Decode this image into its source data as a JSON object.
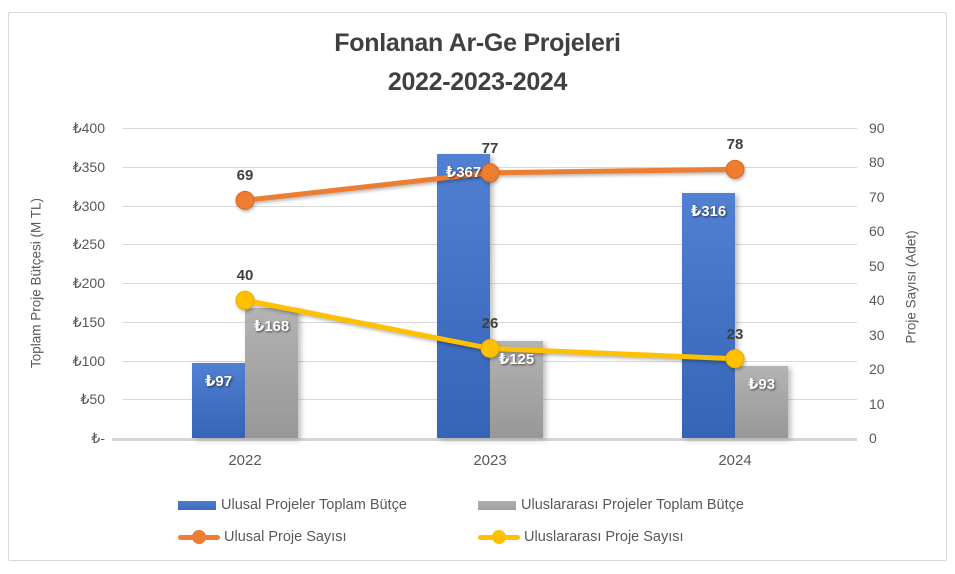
{
  "chart": {
    "title_line1": "Fonlanan Ar-Ge Projeleri",
    "title_line2": "2022-2023-2024"
  },
  "chart_data": {
    "type": "combo-bar-line",
    "title": "Fonlanan Ar-Ge Projeleri 2022-2023-2024",
    "categories": [
      "2022",
      "2023",
      "2024"
    ],
    "series": [
      {
        "name": "Ulusal Projeler Toplam Bütçe",
        "type": "bar",
        "axis": "left",
        "color": "#4472C4",
        "values": [
          97,
          367,
          316
        ],
        "data_labels": [
          "₺97",
          "₺367",
          "₺316"
        ]
      },
      {
        "name": "Uluslararası Projeler Toplam Bütçe",
        "type": "bar",
        "axis": "left",
        "color": "#A6A6A6",
        "values": [
          168,
          125,
          93
        ],
        "data_labels": [
          "₺168",
          "₺125",
          "₺93"
        ]
      },
      {
        "name": "Ulusal Proje Sayısı",
        "type": "line",
        "axis": "right",
        "color": "#ED7D31",
        "values": [
          69,
          77,
          78
        ],
        "data_labels": [
          "69",
          "77",
          "78"
        ]
      },
      {
        "name": "Uluslararası Proje Sayısı",
        "type": "line",
        "axis": "right",
        "color": "#FFC000",
        "values": [
          40,
          26,
          23
        ],
        "data_labels": [
          "40",
          "26",
          "23"
        ]
      }
    ],
    "left_axis": {
      "title": "Toplam Proje Bütçesi (M TL)",
      "min": 0,
      "max": 400,
      "step": 50,
      "tick_labels": [
        "₺-",
        "₺50",
        "₺100",
        "₺150",
        "₺200",
        "₺250",
        "₺300",
        "₺350",
        "₺400"
      ]
    },
    "right_axis": {
      "title": "Proje Sayısı (Adet)",
      "min": 0,
      "max": 90,
      "step": 10,
      "tick_labels": [
        "0",
        "10",
        "20",
        "30",
        "40",
        "50",
        "60",
        "70",
        "80",
        "90"
      ]
    },
    "grid": true,
    "legend_position": "bottom",
    "colors": {
      "grid": "#D9D9D9",
      "axis_text": "#595959",
      "data_label_text": "#404040",
      "title_text": "#404040",
      "bar_label_text": "#FFFFFF"
    }
  }
}
